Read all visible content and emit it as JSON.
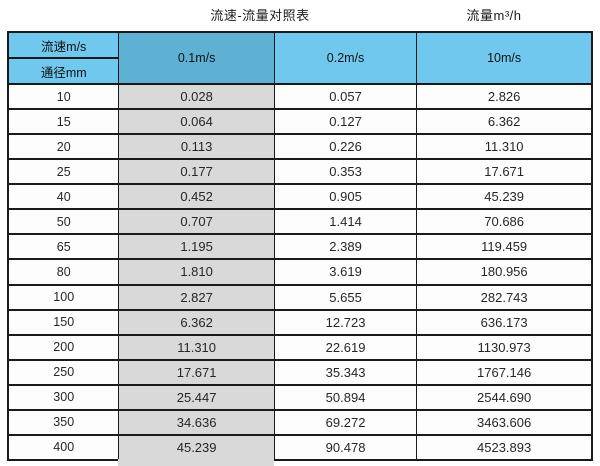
{
  "captions": {
    "title": "流速-流量对照表",
    "unit_label": "流量m³/h"
  },
  "table": {
    "corner": {
      "top": "流速m/s",
      "bottom": "通径mm"
    },
    "velocity_headers": [
      "0.1m/s",
      "0.2m/s",
      "10m/s"
    ],
    "rows": [
      {
        "dn": "10",
        "values": [
          "0.028",
          "0.057",
          "2.826"
        ]
      },
      {
        "dn": "15",
        "values": [
          "0.064",
          "0.127",
          "6.362"
        ]
      },
      {
        "dn": "20",
        "values": [
          "0.113",
          "0.226",
          "11.310"
        ]
      },
      {
        "dn": "25",
        "values": [
          "0.177",
          "0.353",
          "17.671"
        ]
      },
      {
        "dn": "40",
        "values": [
          "0.452",
          "0.905",
          "45.239"
        ]
      },
      {
        "dn": "50",
        "values": [
          "0.707",
          "1.414",
          "70.686"
        ]
      },
      {
        "dn": "65",
        "values": [
          "1.195",
          "2.389",
          "119.459"
        ]
      },
      {
        "dn": "80",
        "values": [
          "1.810",
          "3.619",
          "180.956"
        ]
      },
      {
        "dn": "100",
        "values": [
          "2.827",
          "5.655",
          "282.743"
        ]
      },
      {
        "dn": "150",
        "values": [
          "6.362",
          "12.723",
          "636.173"
        ]
      },
      {
        "dn": "200",
        "values": [
          "11.310",
          "22.619",
          "1130.973"
        ]
      },
      {
        "dn": "250",
        "values": [
          "17.671",
          "35.343",
          "1767.146"
        ]
      },
      {
        "dn": "300",
        "values": [
          "25.447",
          "50.894",
          "2544.690"
        ]
      },
      {
        "dn": "350",
        "values": [
          "34.636",
          "69.272",
          "3463.606"
        ]
      },
      {
        "dn": "400",
        "values": [
          "45.239",
          "90.478",
          "4523.893"
        ]
      }
    ]
  },
  "colors": {
    "header_blue": "#70c8ee",
    "header_blue_dark": "#5fb1d3",
    "col_gray": "#d9d9d9",
    "border": "#1a1a1a",
    "row_bg": "#fdfdfd"
  }
}
